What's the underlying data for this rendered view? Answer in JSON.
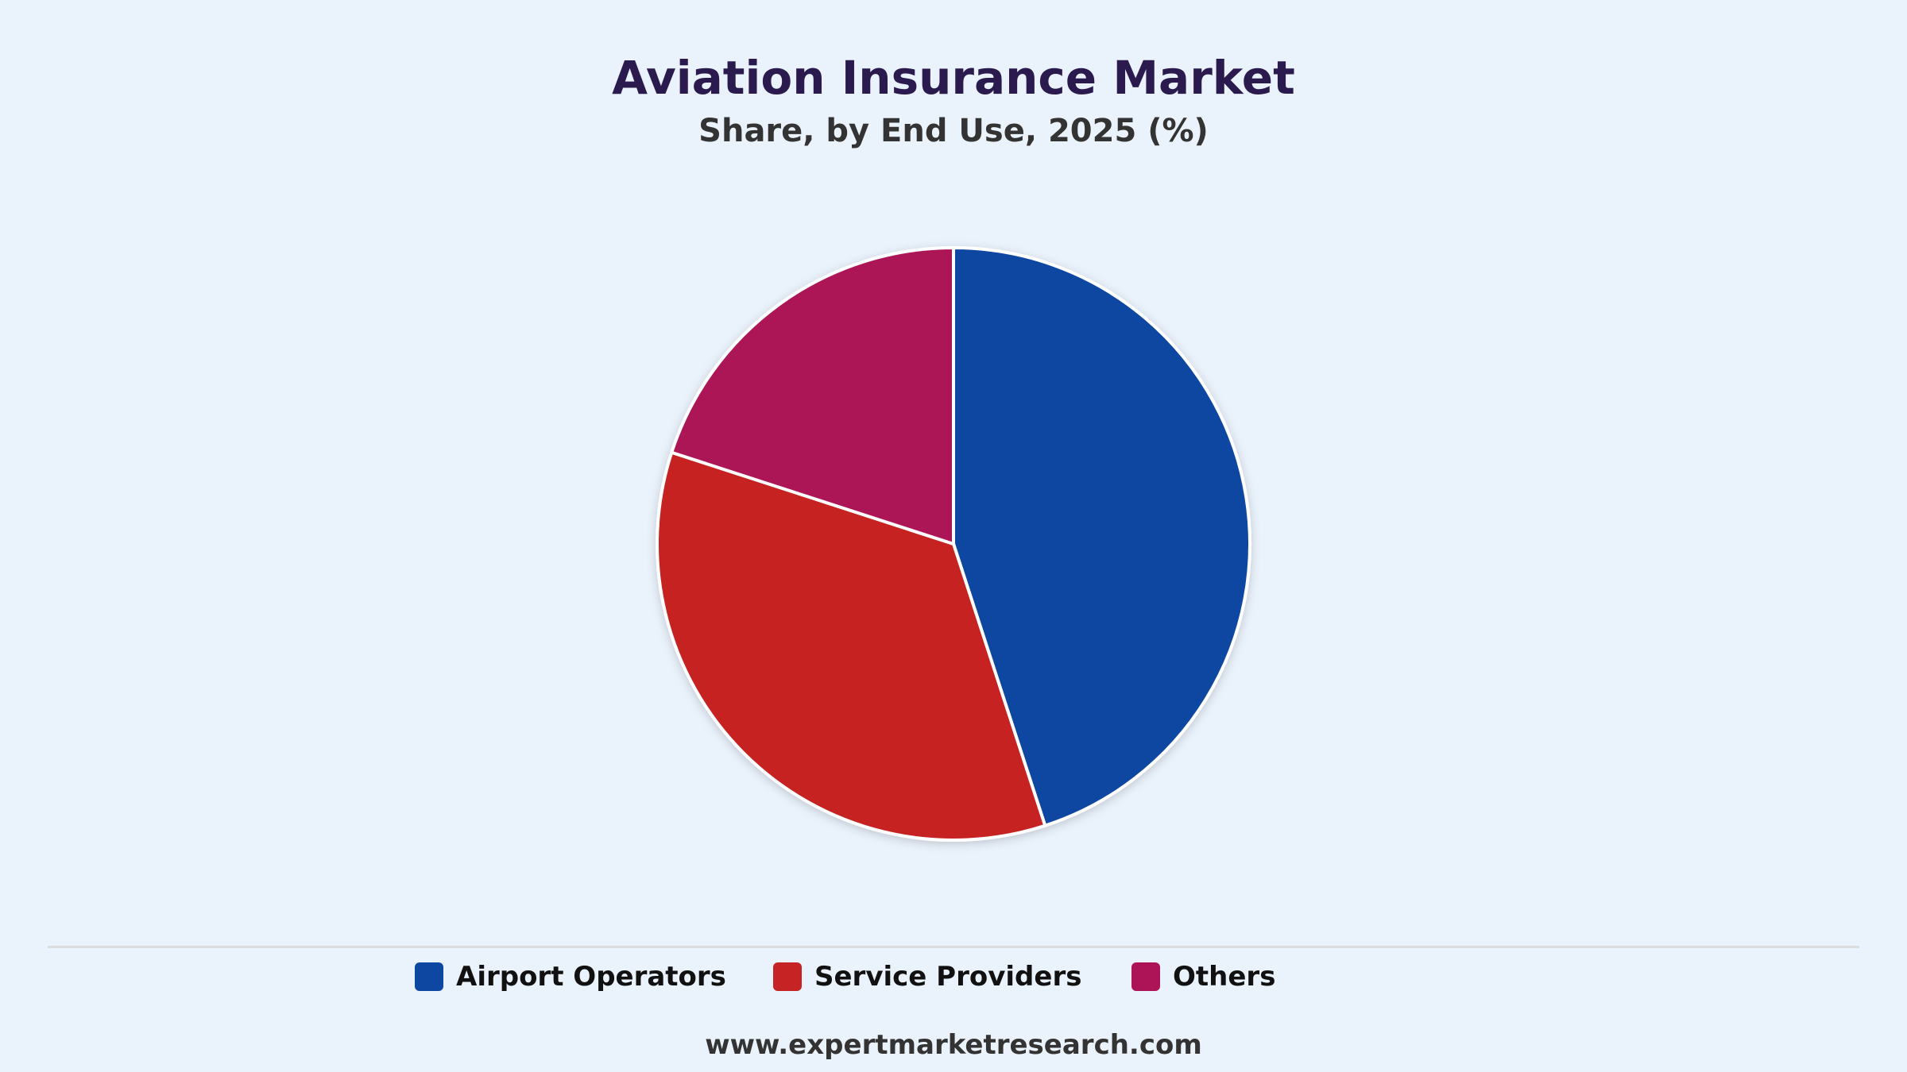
{
  "chart_data": {
    "type": "pie",
    "title": "Aviation Insurance Market",
    "subtitle": "Share, by End Use, 2025 (%)",
    "categories": [
      "Airport Operators",
      "Service Providers",
      "Others"
    ],
    "values": [
      45,
      35,
      20
    ],
    "colors": [
      "#0D47A1",
      "#C62424",
      "#AD1457"
    ],
    "legend_position": "bottom",
    "start_angle_deg": 0,
    "direction": "clockwise"
  },
  "footer": {
    "source": "www.expertmarketresearch.com"
  }
}
